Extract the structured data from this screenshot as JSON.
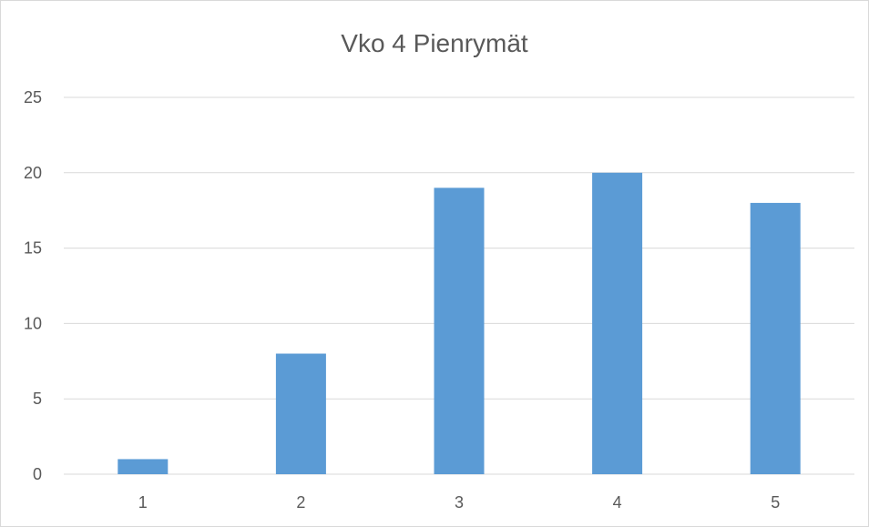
{
  "chart_data": {
    "type": "bar",
    "title": "Vko 4 Pienrymät",
    "categories": [
      "1",
      "2",
      "3",
      "4",
      "5"
    ],
    "values": [
      1,
      8,
      19,
      20,
      18
    ],
    "xlabel": "",
    "ylabel": "",
    "ylim": [
      0,
      25
    ],
    "yticks": [
      "0",
      "5",
      "10",
      "15",
      "20",
      "25"
    ],
    "grid": true,
    "legend": "none",
    "bar_color": "#5b9bd5",
    "grid_color": "#d9d9d9",
    "text_color": "#595959"
  }
}
